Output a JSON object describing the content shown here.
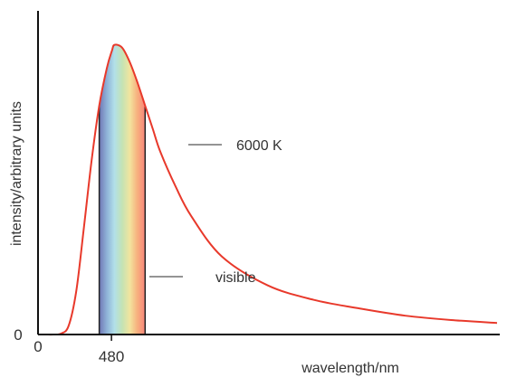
{
  "chart_data": {
    "type": "line",
    "title": "",
    "xlabel": "wavelength/nm",
    "ylabel": "intensity/arbitrary units",
    "x_ticks": [
      {
        "value": 0,
        "label": "0"
      },
      {
        "value": 480,
        "label": "480"
      }
    ],
    "y_ticks": [
      {
        "value": 0,
        "label": "0"
      }
    ],
    "xlim": [
      0,
      3000
    ],
    "ylim": [
      0,
      1.08
    ],
    "grid": false,
    "series": [
      {
        "name": "6000 K",
        "color": "#e8392b",
        "points": [
          [
            0,
            0
          ],
          [
            50,
            0.0
          ],
          [
            100,
            0.0
          ],
          [
            150,
            0.003
          ],
          [
            200,
            0.03
          ],
          [
            250,
            0.15
          ],
          [
            300,
            0.37
          ],
          [
            350,
            0.6
          ],
          [
            400,
            0.79
          ],
          [
            450,
            0.92
          ],
          [
            483,
            0.98
          ],
          [
            500,
            1.0
          ],
          [
            550,
            0.99
          ],
          [
            600,
            0.94
          ],
          [
            650,
            0.87
          ],
          [
            700,
            0.79
          ],
          [
            750,
            0.71
          ],
          [
            800,
            0.63
          ],
          [
            900,
            0.51
          ],
          [
            1000,
            0.41
          ],
          [
            1200,
            0.27
          ],
          [
            1500,
            0.17
          ],
          [
            1800,
            0.12
          ],
          [
            2100,
            0.09
          ],
          [
            2400,
            0.065
          ],
          [
            2700,
            0.05
          ],
          [
            3000,
            0.04
          ]
        ]
      }
    ],
    "shaded_region": {
      "label": "visible",
      "x_range": [
        400,
        700
      ],
      "colors": [
        "#6f76b4",
        "#8fb3d8",
        "#b2e0e9",
        "#c4e3b4",
        "#f2e49e",
        "#f7b07e",
        "#f8857a"
      ]
    },
    "annotations": [
      {
        "text": "6000 K"
      },
      {
        "text": "visible"
      }
    ]
  }
}
